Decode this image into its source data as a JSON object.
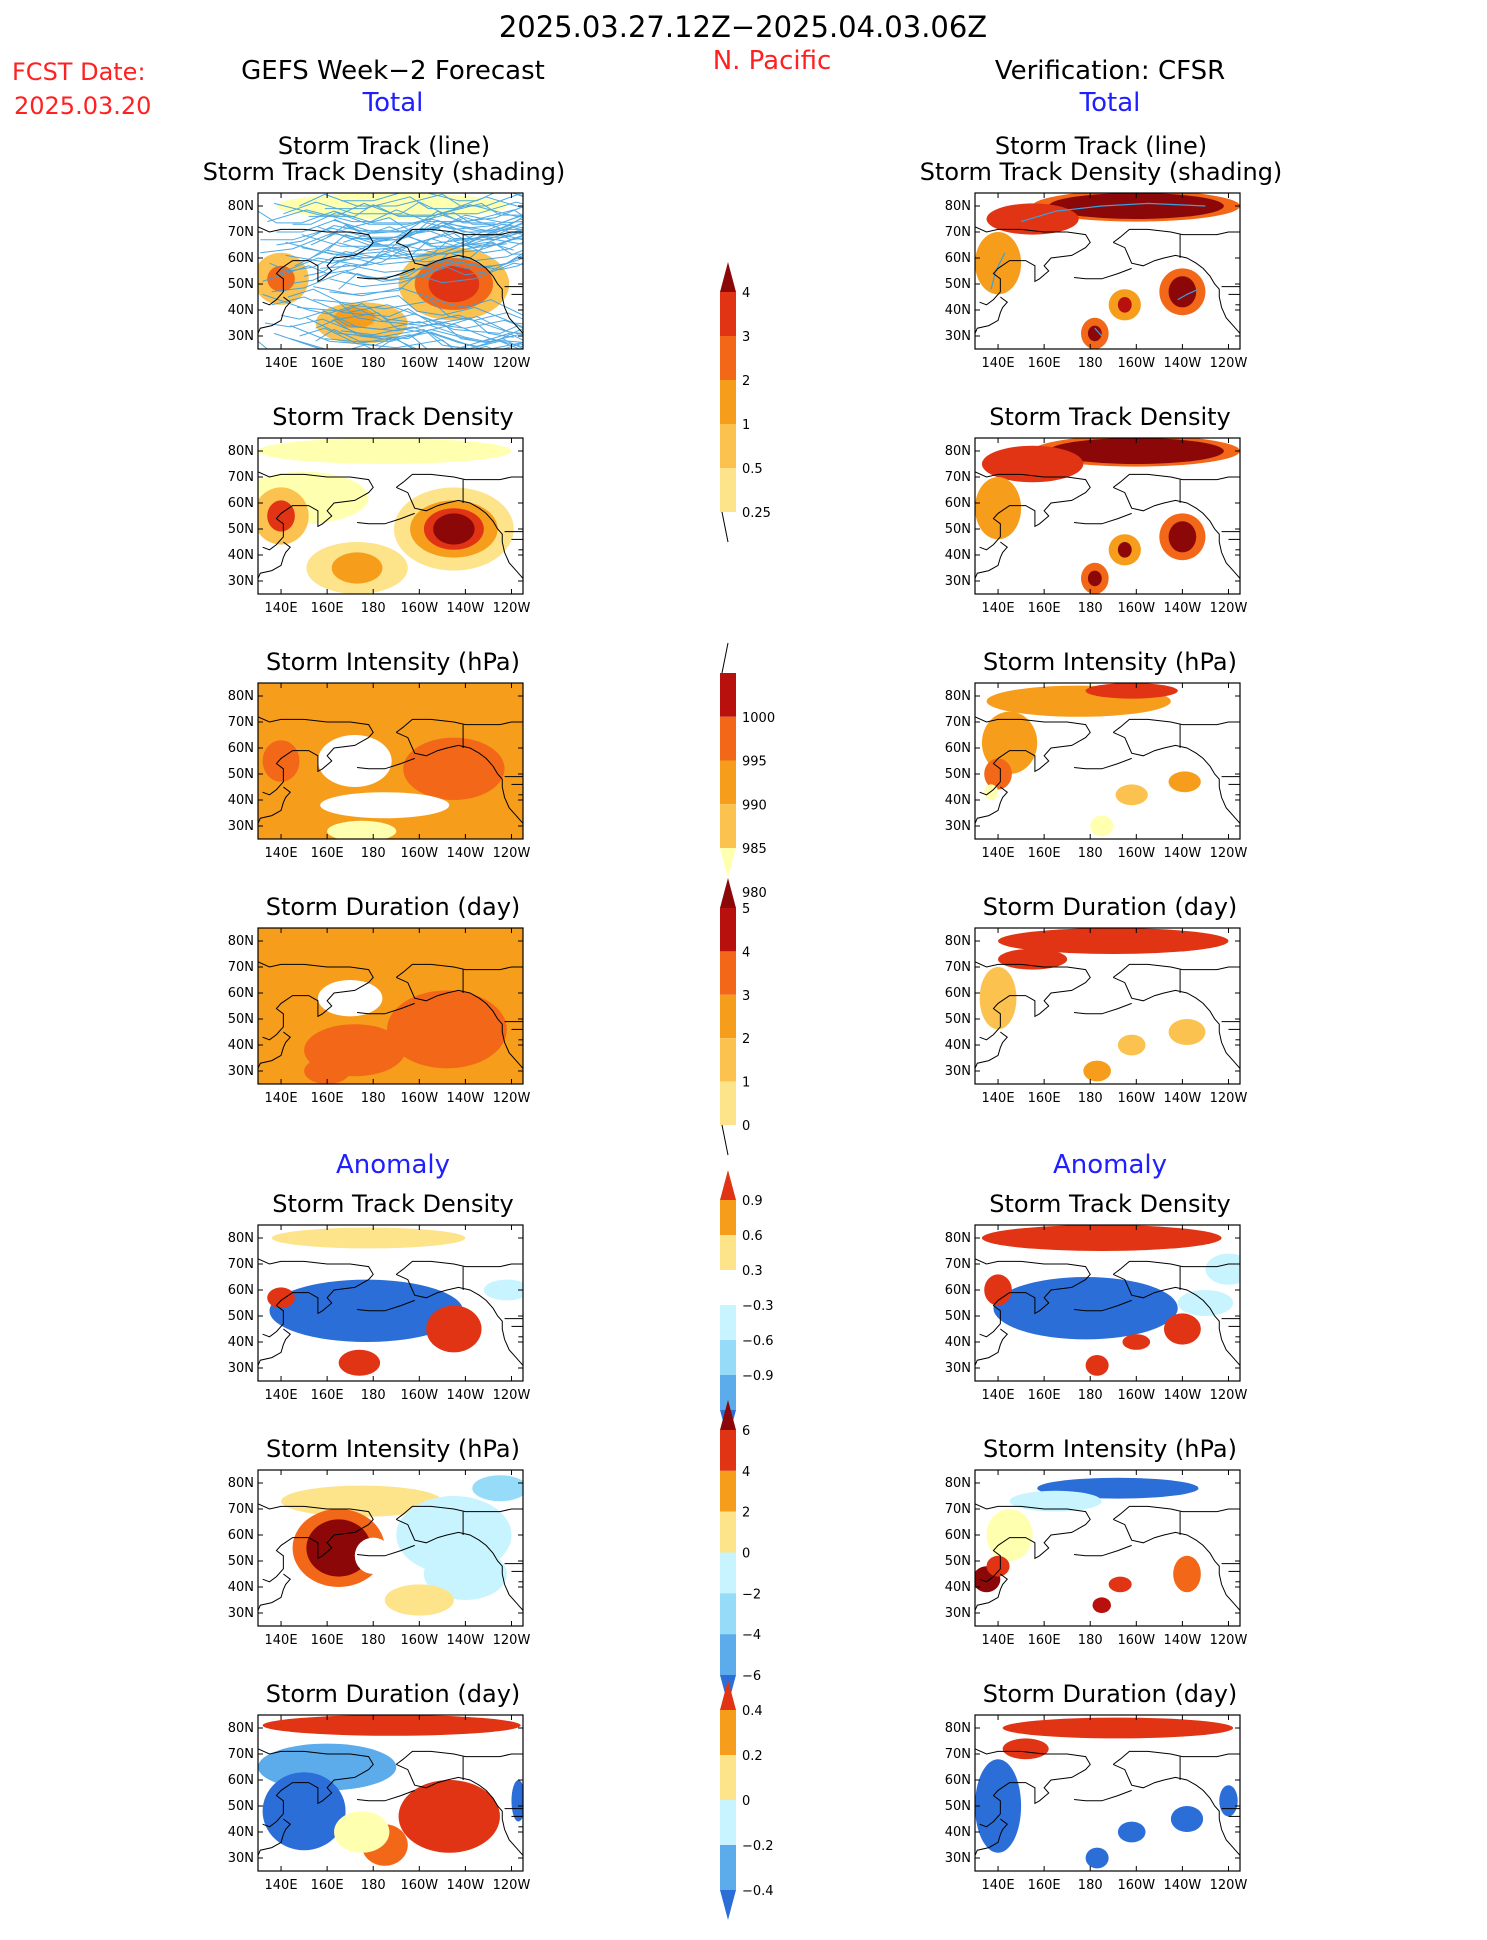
{
  "header": {
    "date_range": "2025.03.27.12Z−2025.04.03.06Z",
    "region": "N. Pacific",
    "fcst_label": "FCST Date:",
    "fcst_date": "2025.03.20",
    "left_title": "GEFS Week−2 Forecast",
    "right_title": "Verification: CFSR",
    "total_label": "Total",
    "anomaly_label": "Anomaly"
  },
  "panel_titles": {
    "track_line": "Storm Track (line)",
    "track_density_shading": "Storm Track Density (shading)",
    "track_density": "Storm Track Density",
    "intensity": "Storm Intensity (hPa)",
    "duration": "Storm Duration (day)"
  },
  "map_axes": {
    "lat_ticks": [
      "80N",
      "70N",
      "60N",
      "50N",
      "40N",
      "30N"
    ],
    "lon_ticks": [
      "140E",
      "160E",
      "180",
      "160W",
      "140W",
      "120W"
    ]
  },
  "colorbars": {
    "density": [
      "4",
      "3",
      "2",
      "1",
      "0.5",
      "0.25"
    ],
    "intensity": [
      "1000",
      "995",
      "990",
      "985",
      "980"
    ],
    "duration": [
      "5",
      "4",
      "3",
      "2",
      "1",
      "0"
    ],
    "density_anom": [
      "0.9",
      "0.6",
      "0.3",
      "−0.3",
      "−0.6",
      "−0.9"
    ],
    "intensity_anom": [
      "6",
      "4",
      "2",
      "0",
      "−2",
      "−4",
      "−6"
    ],
    "duration_anom": [
      "0.4",
      "0.2",
      "0",
      "−0.2",
      "−0.4"
    ]
  },
  "colors": {
    "warm": [
      "#ffffb0",
      "#fde38a",
      "#fbc250",
      "#f79d1c",
      "#f26818",
      "#e03414",
      "#b8100c",
      "#8c0808"
    ],
    "cool": [
      "#c8f4ff",
      "#96dcf8",
      "#5cacec",
      "#2c6ed8",
      "#1850c0"
    ],
    "track_line": "#3aa0e0"
  },
  "chart_data": [
    {
      "type": "heatmap",
      "id": "fcst-track",
      "title": "Storm Track (line) Storm Track Density (shading)",
      "source": "GEFS Week-2 Forecast"
    },
    {
      "type": "heatmap",
      "id": "fcst-density",
      "title": "Storm Track Density",
      "source": "GEFS Week-2 Forecast"
    },
    {
      "type": "heatmap",
      "id": "fcst-intensity",
      "title": "Storm Intensity (hPa)",
      "source": "GEFS Week-2 Forecast"
    },
    {
      "type": "heatmap",
      "id": "fcst-duration",
      "title": "Storm Duration (day)",
      "source": "GEFS Week-2 Forecast"
    },
    {
      "type": "heatmap",
      "id": "fcst-density-anom",
      "title": "Storm Track Density",
      "source": "GEFS Week-2 Forecast"
    },
    {
      "type": "heatmap",
      "id": "fcst-intensity-anom",
      "title": "Storm Intensity (hPa)",
      "source": "GEFS Week-2 Forecast"
    },
    {
      "type": "heatmap",
      "id": "fcst-duration-anom",
      "title": "Storm Duration (day)",
      "source": "GEFS Week-2 Forecast"
    },
    {
      "type": "heatmap",
      "id": "ver-track",
      "title": "Storm Track (line) Storm Track Density (shading)",
      "source": "Verification: CFSR"
    },
    {
      "type": "heatmap",
      "id": "ver-density",
      "title": "Storm Track Density",
      "source": "Verification: CFSR"
    },
    {
      "type": "heatmap",
      "id": "ver-intensity",
      "title": "Storm Intensity (hPa)",
      "source": "Verification: CFSR"
    },
    {
      "type": "heatmap",
      "id": "ver-duration",
      "title": "Storm Duration (day)",
      "source": "Verification: CFSR"
    },
    {
      "type": "heatmap",
      "id": "ver-density-anom",
      "title": "Storm Track Density",
      "source": "Verification: CFSR"
    },
    {
      "type": "heatmap",
      "id": "ver-intensity-anom",
      "title": "Storm Intensity (hPa)",
      "source": "Verification: CFSR"
    },
    {
      "type": "heatmap",
      "id": "ver-duration-anom",
      "title": "Storm Duration (day)",
      "source": "Verification: CFSR"
    }
  ]
}
